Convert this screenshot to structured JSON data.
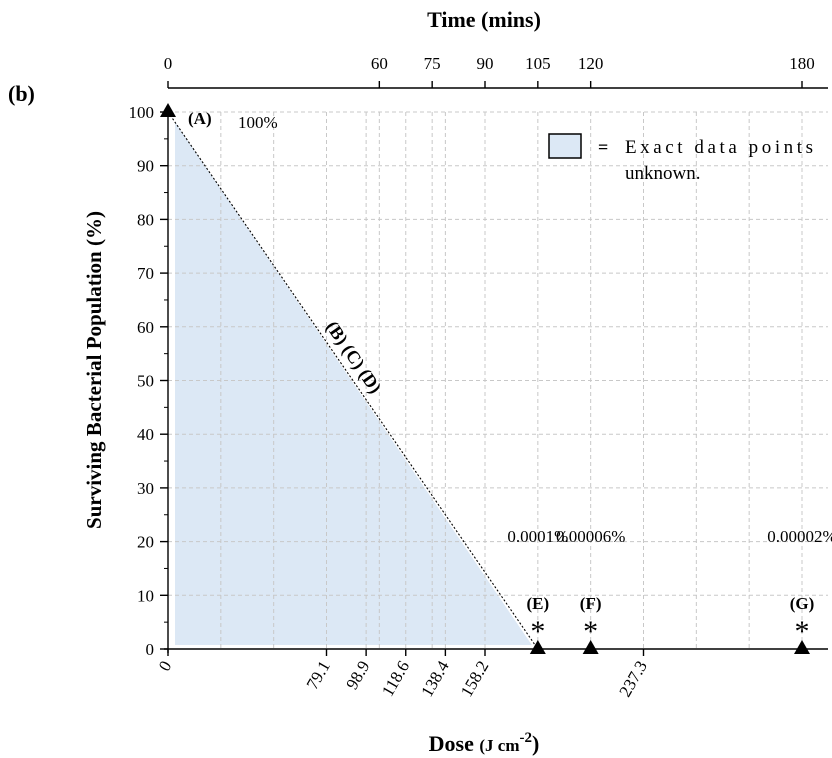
{
  "panel_label": "(b)",
  "chart_data": {
    "type": "line",
    "title": "",
    "xlabel_bottom": "Dose",
    "xlabel_bottom_unit": "(J cm",
    "xlabel_bottom_exp": "-2",
    "xlabel_bottom_close": ")",
    "xlabel_top": "Time (mins)",
    "ylabel": "Surviving Bacterial Population (%)",
    "ylim": [
      0,
      100
    ],
    "xlim_time": [
      0,
      180
    ],
    "yticks": [
      0,
      10,
      20,
      30,
      40,
      50,
      60,
      70,
      80,
      90,
      100
    ],
    "top_ticks": [
      0,
      60,
      75,
      90,
      105,
      120,
      180
    ],
    "bottom_ticks": [
      {
        "time": 0,
        "label": "0"
      },
      {
        "time": 45,
        "label": "79.1"
      },
      {
        "time": 56.25,
        "label": "98.9"
      },
      {
        "time": 67.5,
        "label": "118.6"
      },
      {
        "time": 78.75,
        "label": "138.4"
      },
      {
        "time": 90,
        "label": "158.2"
      },
      {
        "time": 135,
        "label": "237.3"
      }
    ],
    "grid": true,
    "points": [
      {
        "id": "A",
        "time": 0,
        "dose": 0,
        "value": 100,
        "label": "(A)",
        "pct_label": "100%",
        "star": false
      },
      {
        "id": "E",
        "time": 105,
        "dose": 138.4,
        "value": 0.0001,
        "label": "(E)",
        "pct_label": "0.0001%",
        "star": true
      },
      {
        "id": "F",
        "time": 120,
        "dose": 158.2,
        "value": 6e-05,
        "label": "(F)",
        "pct_label": "0.00006%",
        "star": true
      },
      {
        "id": "G",
        "time": 180,
        "dose": 237.3,
        "value": 2e-05,
        "label": "(G)",
        "pct_label": "0.00002%",
        "star": true
      }
    ],
    "star_symbol": "*",
    "diagonal_label": "(B) (C) (D)",
    "legend": {
      "placement": "top-right",
      "symbol_text": "=",
      "line1": "Exact data points",
      "line2": "unknown."
    },
    "colors": {
      "shaded_region": "#dce8f5",
      "legend_box": "#dce8f5",
      "grid": "#c8c8c8",
      "marker": "#000000"
    }
  }
}
